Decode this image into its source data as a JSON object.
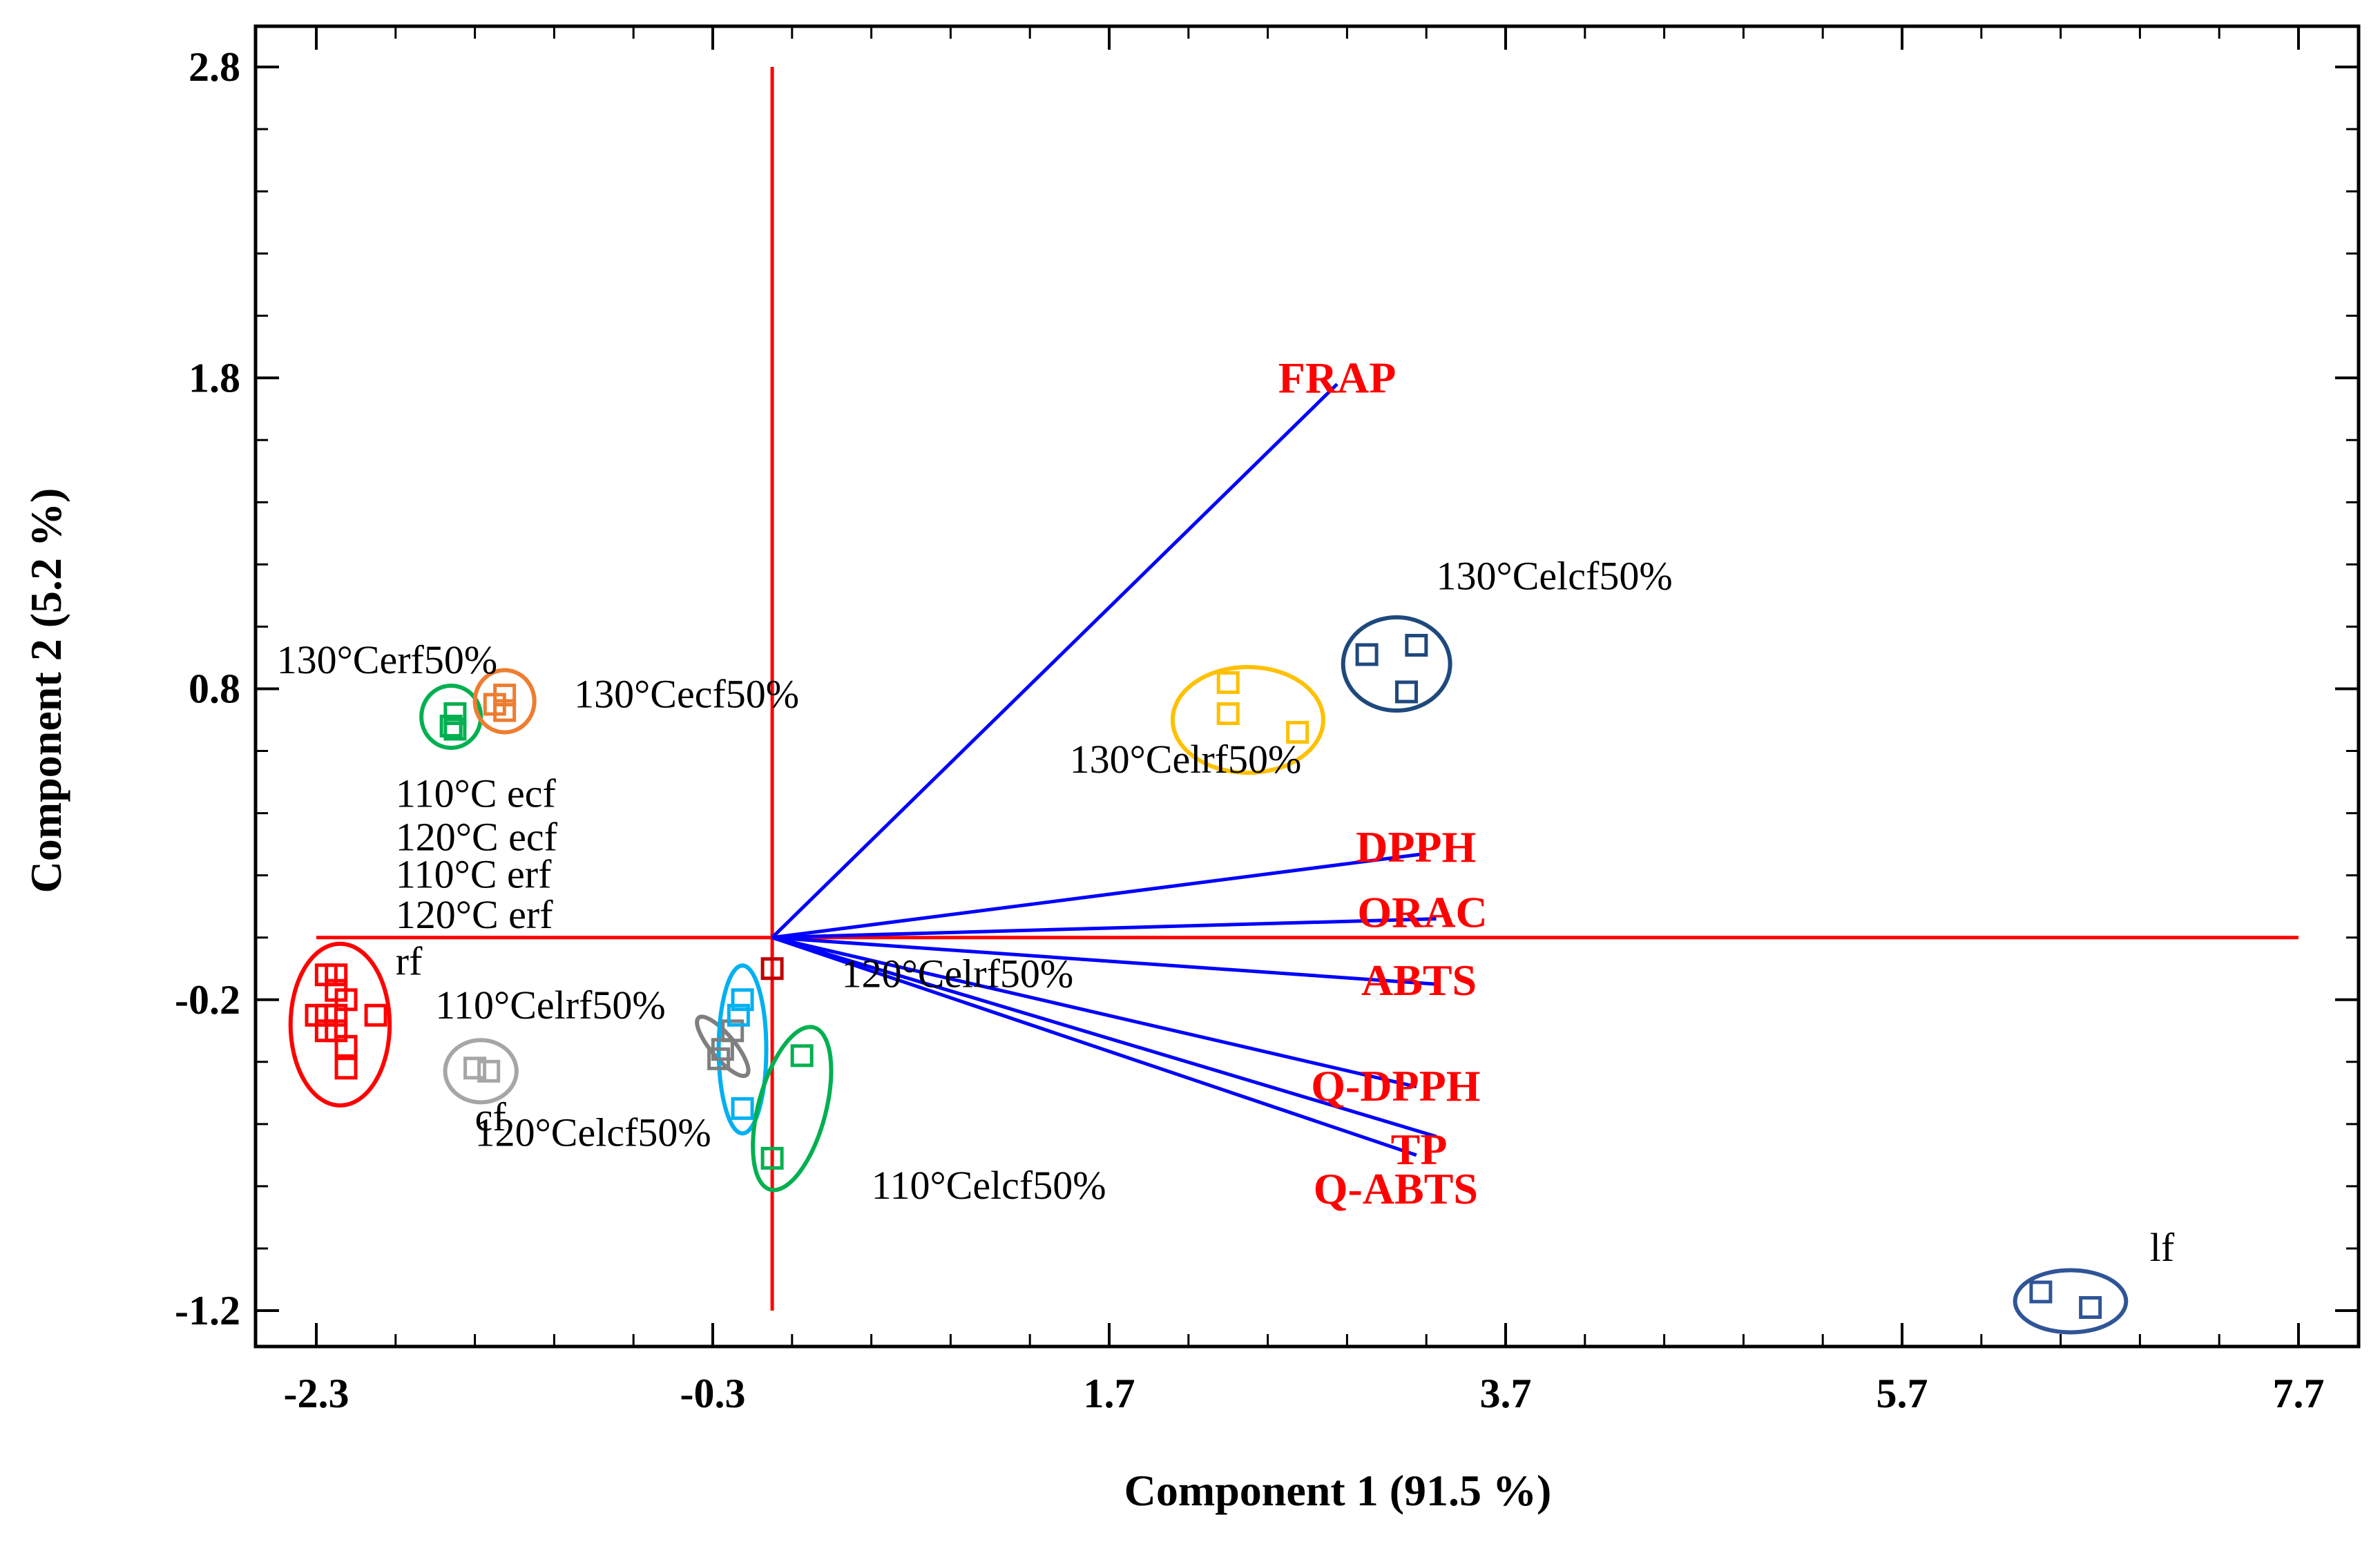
{
  "chart_data": {
    "type": "scatter",
    "subtype": "biplot",
    "xlabel": "Component 1 (91.5 %)",
    "ylabel": "Component 2 (5.2 %)",
    "xlim": [
      -2.3,
      7.7
    ],
    "ylim": [
      -1.2,
      2.8
    ],
    "xticks": [
      -2.3,
      -0.3,
      1.7,
      3.7,
      5.7,
      7.7
    ],
    "yticks": [
      -1.2,
      -0.2,
      0.8,
      1.8,
      2.8
    ],
    "grid": false,
    "colors": {
      "axis_lines": "#ff0000",
      "vectors": "#0000ff",
      "variable_labels": "#ff0000"
    },
    "variables": [
      {
        "name": "FRAP",
        "x": 2.85,
        "y": 1.78
      },
      {
        "name": "DPPH",
        "x": 3.3,
        "y": 0.27
      },
      {
        "name": "ORAC",
        "x": 3.35,
        "y": 0.06
      },
      {
        "name": "ABTS",
        "x": 3.35,
        "y": -0.15
      },
      {
        "name": "Q-DPPH",
        "x": 3.25,
        "y": -0.48
      },
      {
        "name": "TP",
        "x": 3.35,
        "y": -0.64
      },
      {
        "name": "Q-ABTS",
        "x": 3.25,
        "y": -0.7
      }
    ],
    "groups": [
      {
        "color": "#ff0000",
        "points": [
          [
            -2.25,
            -0.12
          ],
          [
            -2.2,
            -0.12
          ],
          [
            -2.2,
            -0.17
          ],
          [
            -2.15,
            -0.2
          ],
          [
            -2.2,
            -0.25
          ],
          [
            -2.25,
            -0.25
          ],
          [
            -2.3,
            -0.25
          ],
          [
            -2.25,
            -0.3
          ],
          [
            -2.2,
            -0.3
          ],
          [
            -2.15,
            -0.35
          ],
          [
            -2.15,
            -0.42
          ],
          [
            -2.0,
            -0.25
          ]
        ],
        "ellipse": {
          "cx": -2.18,
          "cy": -0.28,
          "rx": 0.25,
          "ry": 0.26
        }
      },
      {
        "color": "#00b050",
        "points": [
          [
            -1.6,
            0.72
          ],
          [
            -1.62,
            0.68
          ],
          [
            -1.6,
            0.67
          ]
        ],
        "ellipse": {
          "cx": -1.62,
          "cy": 0.71,
          "rx": 0.15,
          "ry": 0.1
        }
      },
      {
        "color": "#ed7d31",
        "points": [
          [
            -1.35,
            0.78
          ],
          [
            -1.4,
            0.75
          ],
          [
            -1.35,
            0.73
          ]
        ],
        "ellipse": {
          "cx": -1.35,
          "cy": 0.76,
          "rx": 0.15,
          "ry": 0.1
        }
      },
      {
        "color": "#a6a6a6",
        "points": [
          [
            -1.5,
            -0.42
          ],
          [
            -1.43,
            -0.43
          ]
        ],
        "ellipse": {
          "cx": -1.47,
          "cy": -0.43,
          "rx": 0.18,
          "ry": 0.1
        }
      },
      {
        "color": "#7f7f7f",
        "points": [
          [
            -0.2,
            -0.3
          ],
          [
            -0.25,
            -0.36
          ],
          [
            -0.27,
            -0.39
          ]
        ],
        "ellipse": {
          "cx": -0.25,
          "cy": -0.35,
          "rx": 0.06,
          "ry": 0.12,
          "rotate": -40
        }
      },
      {
        "color": "#00b0f0",
        "points": [
          [
            -0.15,
            -0.2
          ],
          [
            -0.17,
            -0.25
          ],
          [
            -0.15,
            -0.55
          ]
        ],
        "ellipse": {
          "cx": -0.15,
          "cy": -0.36,
          "rx": 0.12,
          "ry": 0.27
        }
      },
      {
        "color": "#00b050",
        "points": [
          [
            0.15,
            -0.38
          ],
          [
            0.0,
            -0.71
          ]
        ],
        "ellipse": {
          "cx": 0.1,
          "cy": -0.55,
          "rx": 0.17,
          "ry": 0.27,
          "rotate": 15
        }
      },
      {
        "color": "#c00000",
        "points": [
          [
            0.0,
            -0.1
          ]
        ],
        "ellipse": null
      },
      {
        "color": "#ffc000",
        "points": [
          [
            2.3,
            0.82
          ],
          [
            2.3,
            0.72
          ],
          [
            2.65,
            0.66
          ]
        ],
        "ellipse": {
          "cx": 2.4,
          "cy": 0.7,
          "rx": 0.38,
          "ry": 0.17
        }
      },
      {
        "color": "#1f497d",
        "points": [
          [
            3.0,
            0.91
          ],
          [
            3.25,
            0.94
          ],
          [
            3.2,
            0.79
          ]
        ],
        "ellipse": {
          "cx": 3.15,
          "cy": 0.88,
          "rx": 0.27,
          "ry": 0.15
        }
      },
      {
        "color": "#2f5597",
        "points": [
          [
            6.4,
            -1.14
          ],
          [
            6.65,
            -1.19
          ]
        ],
        "ellipse": {
          "cx": 6.55,
          "cy": -1.17,
          "rx": 0.28,
          "ry": 0.1
        }
      }
    ],
    "sample_labels": [
      {
        "text": "130°Celcf50%",
        "x": 3.35,
        "y": 1.12
      },
      {
        "text": "130°Cerf50%",
        "x": -2.5,
        "y": 0.85
      },
      {
        "text": "130°Cecf50%",
        "x": -1.0,
        "y": 0.74
      },
      {
        "text": "130°Celrf50%",
        "x": 1.5,
        "y": 0.53
      },
      {
        "text": "110°C ecf",
        "x": -1.9,
        "y": 0.42
      },
      {
        "text": "120°C ecf",
        "x": -1.9,
        "y": 0.28
      },
      {
        "text": "110°C erf",
        "x": -1.9,
        "y": 0.16
      },
      {
        "text": "120°C erf",
        "x": -1.9,
        "y": 0.03
      },
      {
        "text": "rf",
        "x": -1.9,
        "y": -0.12
      },
      {
        "text": "110°Celrf50%",
        "x": -1.7,
        "y": -0.26
      },
      {
        "text": "120°Celrf50%",
        "x": 0.35,
        "y": -0.16
      },
      {
        "text": "cf",
        "x": -1.5,
        "y": -0.62
      },
      {
        "text": "120°Celcf50%",
        "x": -1.5,
        "y": -0.67
      },
      {
        "text": "110°Celcf50%",
        "x": 0.5,
        "y": -0.84
      },
      {
        "text": "lf",
        "x": 6.95,
        "y": -1.04
      }
    ]
  }
}
